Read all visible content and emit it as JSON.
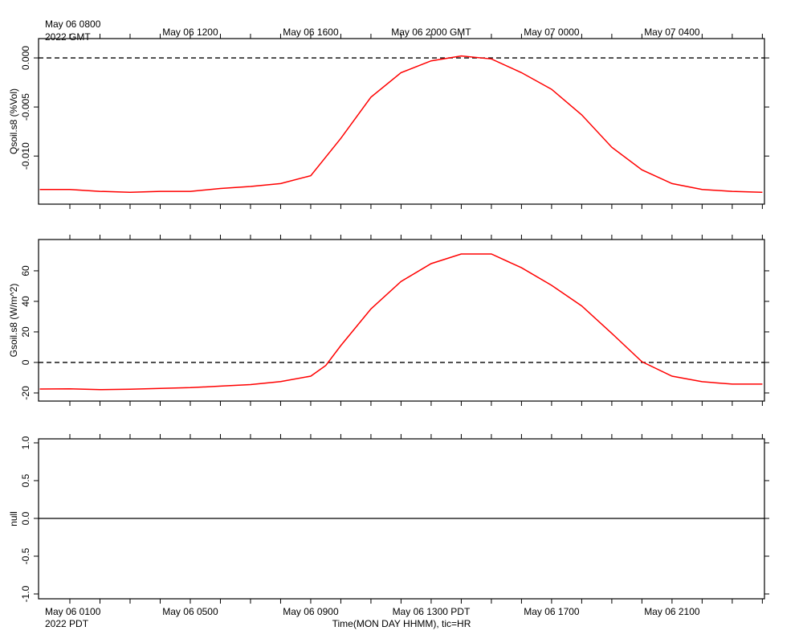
{
  "chart_data": [
    {
      "type": "line",
      "ylabel": "Qsoil.s8 (%Vol)",
      "color": "#ff0000",
      "zero_line": "dashed",
      "x": [
        -1,
        0,
        1,
        2,
        3,
        4,
        5,
        6,
        7,
        8,
        9,
        10,
        11,
        12,
        13,
        14,
        15,
        16,
        17,
        18,
        19,
        20,
        21,
        22,
        23
      ],
      "values": [
        -0.0134,
        -0.0134,
        -0.0136,
        -0.0137,
        -0.0136,
        -0.0136,
        -0.0133,
        -0.0131,
        -0.0128,
        -0.012,
        -0.0082,
        -0.004,
        -0.0015,
        -0.0003,
        0.0002,
        -0.0001,
        -0.0015,
        -0.0032,
        -0.0058,
        -0.0091,
        -0.0114,
        -0.0128,
        -0.0134,
        -0.0136,
        -0.0137
      ],
      "xlim": [
        -1.04,
        23.07
      ],
      "ylim": [
        -0.0149,
        0.00197
      ],
      "yticks": [
        {
          "value": 0,
          "label": "0.000"
        },
        {
          "value": -0.005,
          "label": "-0.005"
        },
        {
          "value": -0.01,
          "label": "-0.010"
        }
      ],
      "xticks": [
        {
          "value": 0,
          "label": "May 06 0800"
        },
        {
          "value": 1,
          "label": null
        },
        {
          "value": 2,
          "label": null
        },
        {
          "value": 3,
          "label": null
        },
        {
          "value": 4,
          "label": "May 06 1200"
        },
        {
          "value": 5,
          "label": null
        },
        {
          "value": 6,
          "label": null
        },
        {
          "value": 7,
          "label": null
        },
        {
          "value": 8,
          "label": "May 06 1600"
        },
        {
          "value": 9,
          "label": null
        },
        {
          "value": 10,
          "label": null
        },
        {
          "value": 11,
          "label": null
        },
        {
          "value": 12,
          "label": "May 06 2000 GMT"
        },
        {
          "value": 13,
          "label": null
        },
        {
          "value": 14,
          "label": null
        },
        {
          "value": 15,
          "label": null
        },
        {
          "value": 16,
          "label": "May 07 0000"
        },
        {
          "value": 17,
          "label": null
        },
        {
          "value": 18,
          "label": null
        },
        {
          "value": 19,
          "label": null
        },
        {
          "value": 20,
          "label": "May 07 0400"
        },
        {
          "value": 21,
          "label": null
        },
        {
          "value": 22,
          "label": null
        },
        {
          "value": 23,
          "label": null
        }
      ],
      "x_note": "2022 GMT"
    },
    {
      "type": "line",
      "ylabel": "Gsoil.s8 (W/m^2)",
      "color": "#ff0000",
      "zero_line": "dashed",
      "x": [
        -1,
        0,
        1,
        2,
        3,
        4,
        5,
        6,
        7,
        8,
        8.5,
        9,
        10,
        11,
        12,
        13,
        14,
        15,
        16,
        17,
        18,
        19,
        20,
        21,
        22,
        23
      ],
      "values": [
        -17.4,
        -17.3,
        -17.8,
        -17.5,
        -17,
        -16.5,
        -15.5,
        -14.5,
        -12.5,
        -9,
        -2,
        11,
        35,
        53,
        64.7,
        71,
        71,
        62,
        50.5,
        37,
        19,
        0.5,
        -9,
        -12.6,
        -14.2,
        -14.2
      ],
      "xlim": [
        -1.04,
        23.07
      ],
      "ylim": [
        -25.3,
        80.5
      ],
      "yticks": [
        -20,
        0,
        20,
        40,
        60
      ]
    },
    {
      "type": "line",
      "ylabel": "null",
      "zero_line": "solid",
      "xlim": [
        -1.04,
        23.07
      ],
      "ylim": [
        -1.064,
        1.053
      ],
      "yticks": [
        {
          "value": 1,
          "label": "1.0"
        },
        {
          "value": 0.5,
          "label": "0.5"
        },
        {
          "value": 0,
          "label": "0.0"
        },
        {
          "value": -0.5,
          "label": "-0.5"
        },
        {
          "value": -1,
          "label": "-1.0"
        }
      ],
      "xticks": [
        {
          "value": 0,
          "label": "May 06 0100"
        },
        {
          "value": 4,
          "label": "May 06 0500"
        },
        {
          "value": 8,
          "label": "May 06 0900"
        },
        {
          "value": 12,
          "label": "May 06 1300 PDT"
        },
        {
          "value": 16,
          "label": "May 06 1700"
        },
        {
          "value": 20,
          "label": "May 06 2100"
        }
      ],
      "x_note": "2022 PDT",
      "xlabel": "Time(MON DAY HHMM), tic=HR"
    }
  ]
}
